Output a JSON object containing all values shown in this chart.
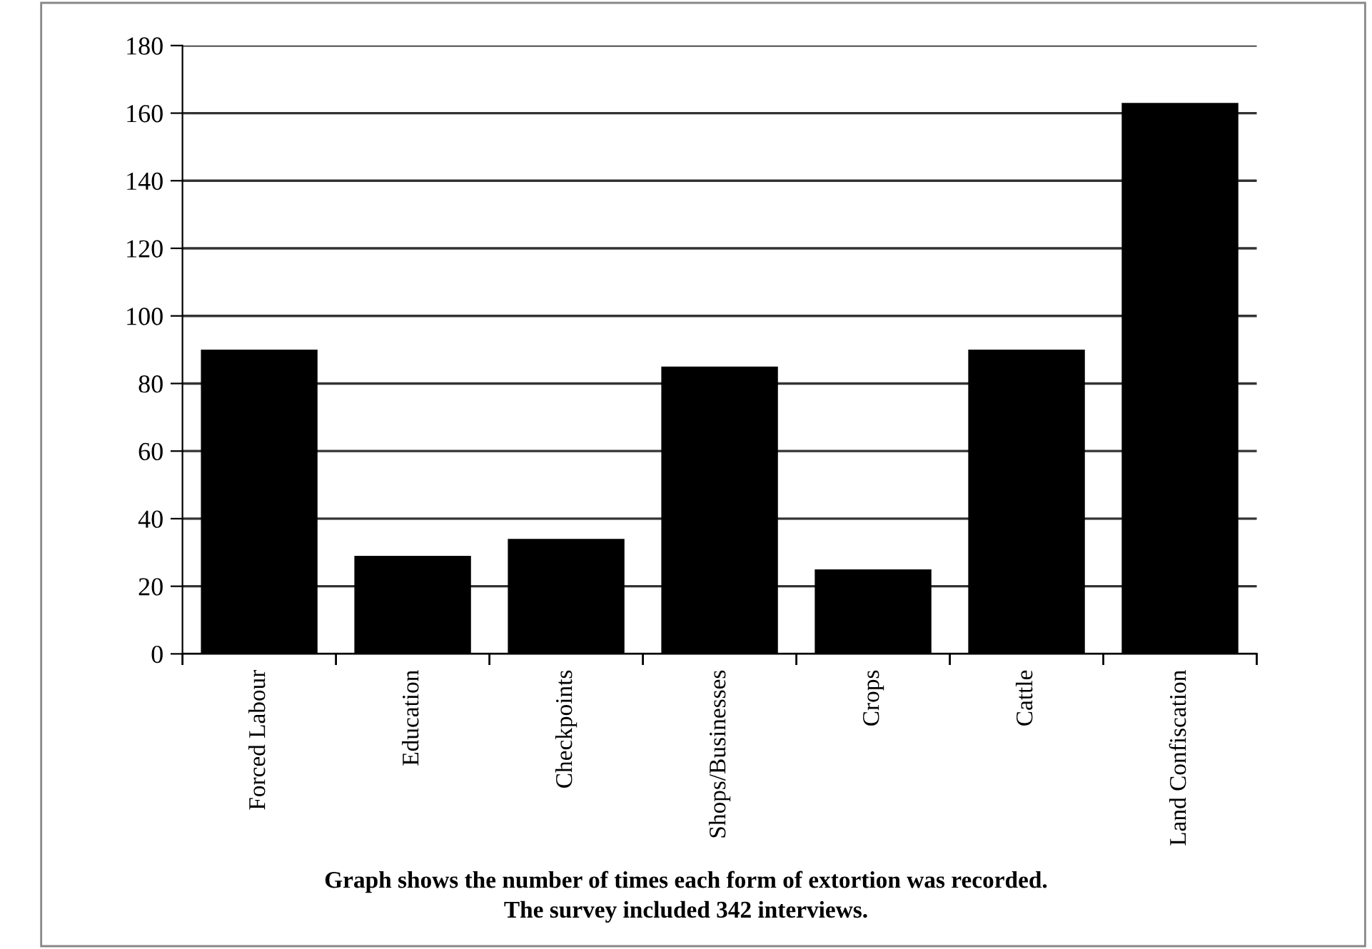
{
  "chart_data": {
    "type": "bar",
    "categories": [
      "Forced Labour",
      "Education",
      "Checkpoints",
      "Shops/Businesses",
      "Crops",
      "Cattle",
      "Land Confiscation"
    ],
    "values": [
      90,
      29,
      34,
      85,
      25,
      90,
      163
    ],
    "color": "#000000",
    "ylim": [
      0,
      180
    ],
    "yticks": [
      0,
      20,
      40,
      60,
      80,
      100,
      120,
      140,
      160,
      180
    ],
    "grid": "y",
    "annotations": [
      "Graph shows the number of times each form of extortion was recorded.\nThe survey included 342 interviews."
    ]
  }
}
